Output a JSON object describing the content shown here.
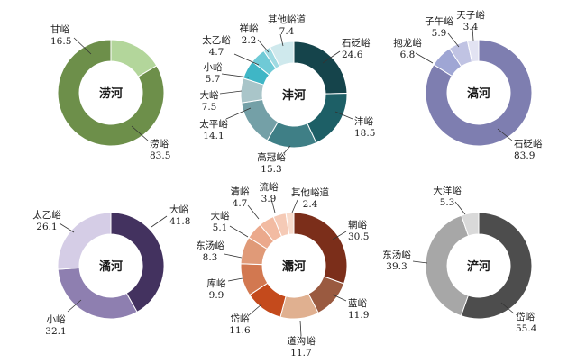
{
  "chart_data": [
    {
      "type": "pie",
      "title": "涝河",
      "slices": [
        {
          "label": "甘峪",
          "value": 16.5,
          "color": "#b3d69b"
        },
        {
          "label": "涝峪",
          "value": 83.5,
          "color": "#6d8f4a"
        }
      ]
    },
    {
      "type": "pie",
      "title": "沣河",
      "slices": [
        {
          "label": "石砭峪",
          "value": 24.6,
          "color": "#15444b"
        },
        {
          "label": "沣峪",
          "value": 18.5,
          "color": "#1d5f66"
        },
        {
          "label": "高冠峪",
          "value": 15.3,
          "color": "#3f7f86"
        },
        {
          "label": "太平峪",
          "value": 14.1,
          "color": "#74a0a7"
        },
        {
          "label": "大峪",
          "value": 7.5,
          "color": "#a9c5c9"
        },
        {
          "label": "小峪",
          "value": 5.7,
          "color": "#3fb6c6"
        },
        {
          "label": "太乙峪",
          "value": 4.7,
          "color": "#6fcad6"
        },
        {
          "label": "祥峪",
          "value": 2.2,
          "color": "#9fdae2"
        },
        {
          "label": "其他峪道",
          "value": 7.4,
          "color": "#cfe9ed"
        }
      ]
    },
    {
      "type": "pie",
      "title": "滈河",
      "slices": [
        {
          "label": "石砭峪",
          "value": 83.9,
          "color": "#7e7eb0"
        },
        {
          "label": "抱龙峪",
          "value": 6.8,
          "color": "#9fa6d4"
        },
        {
          "label": "子午峪",
          "value": 5.9,
          "color": "#c0c3e3"
        },
        {
          "label": "天子峪",
          "value": 3.4,
          "color": "#e2e3f2"
        }
      ]
    },
    {
      "type": "pie",
      "title": "潏河",
      "slices": [
        {
          "label": "大峪",
          "value": 41.8,
          "color": "#43325f"
        },
        {
          "label": "小峪",
          "value": 32.1,
          "color": "#8e7fb0"
        },
        {
          "label": "太乙峪",
          "value": 26.1,
          "color": "#d5cde6"
        }
      ]
    },
    {
      "type": "pie",
      "title": "灞河",
      "slices": [
        {
          "label": "辋峪",
          "value": 30.5,
          "color": "#7b2e1a"
        },
        {
          "label": "蓝峪",
          "value": 11.9,
          "color": "#9a5a40"
        },
        {
          "label": "道沟峪",
          "value": 11.7,
          "color": "#e0b090"
        },
        {
          "label": "岱峪",
          "value": 11.6,
          "color": "#c44a1c"
        },
        {
          "label": "库峪",
          "value": 9.9,
          "color": "#d27850"
        },
        {
          "label": "东汤峪",
          "value": 8.3,
          "color": "#e09a78"
        },
        {
          "label": "大峪",
          "value": 5.1,
          "color": "#eba98c"
        },
        {
          "label": "清峪",
          "value": 4.7,
          "color": "#f2bba2"
        },
        {
          "label": "流峪",
          "value": 3.9,
          "color": "#f5cab6"
        },
        {
          "label": "其他峪道",
          "value": 2.4,
          "color": "#f8dccd"
        }
      ]
    },
    {
      "type": "pie",
      "title": "浐河",
      "slices": [
        {
          "label": "岱峪",
          "value": 55.4,
          "color": "#4d4d4d"
        },
        {
          "label": "东汤峪",
          "value": 39.3,
          "color": "#a7a7a7"
        },
        {
          "label": "大洋峪",
          "value": 5.3,
          "color": "#d9d9d9"
        }
      ]
    }
  ]
}
